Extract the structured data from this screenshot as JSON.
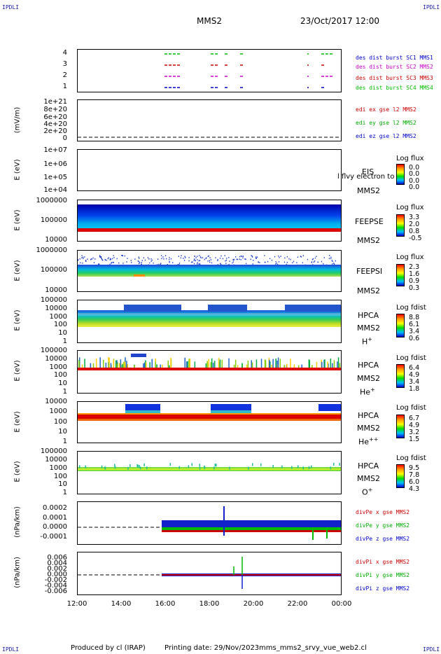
{
  "corners": {
    "tl": "IPDLI",
    "tr": "IPDLI",
    "bl": "IPDLI",
    "br": "IPDLI"
  },
  "header": {
    "spacecraft": "MMS2",
    "datetime": "23/Oct/2017 12:00"
  },
  "x_axis": {
    "ticks": [
      "12:00",
      "14:00",
      "16:00",
      "18:00",
      "20:00",
      "22:00",
      "00:00"
    ]
  },
  "colors": {
    "mms1": "#0000cc",
    "mms2": "#cc00cc",
    "mms3": "#cc0000",
    "mms4": "#00bb00",
    "red": "#cc0000",
    "green": "#00aa00",
    "blue": "#0000cc"
  },
  "panels": {
    "burst": {
      "ticks": [
        "4",
        "3",
        "2",
        "1"
      ],
      "legend": [
        "des dist burst SC1 MMS1",
        "des dist burst SC2 MMS2",
        "des dist burst SC3 MMS3",
        "des dist burst SC4 MMS4"
      ]
    },
    "edi": {
      "ylabel": "(mV/m)",
      "ticks": [
        "1e+21",
        "8e+20",
        "6e+20",
        "4e+20",
        "2e+20",
        "0"
      ],
      "legend": [
        "edi ex gse l2 MMS2",
        "edi ey gse l2 MMS2",
        "edi ez gse l2 MMS2"
      ]
    },
    "eis": {
      "ylabel": "E (eV)",
      "ticks": [
        "1e+07",
        "1e+06",
        "1e+05",
        "1e+04"
      ],
      "label1": "EIS",
      "label2": "MMS2",
      "overlay": "l flvy electron to",
      "cb_title": "Log flux",
      "cb_vals": [
        "0.0",
        "0.0",
        "0.0",
        "0.0"
      ]
    },
    "feepse": {
      "ylabel": "E (eV)",
      "ticks": [
        "1000000",
        "100000",
        "10000"
      ],
      "label1": "FEEPSE",
      "label2": "MMS2",
      "cb_title": "Log flux",
      "cb_vals": [
        "3.3",
        "2.0",
        "0.8",
        "-0.5"
      ]
    },
    "feepsi": {
      "ylabel": "E (eV)",
      "ticks": [
        "1000000",
        "100000",
        "10000"
      ],
      "label1": "FEEPSI",
      "label2": "MMS2",
      "cb_title": "Log flux",
      "cb_vals": [
        "2.3",
        "1.6",
        "0.9",
        "0.3"
      ]
    },
    "hpca_h": {
      "ylabel": "E (eV)",
      "ticks": [
        "100000",
        "10000",
        "1000",
        "100",
        "10",
        "1"
      ],
      "label1": "HPCA",
      "label2": "MMS2",
      "species": "H",
      "charge": "+",
      "cb_title": "Log fdist",
      "cb_vals": [
        "8.8",
        "6.1",
        "3.4",
        "0.6"
      ]
    },
    "hpca_he": {
      "ylabel": "E (eV)",
      "ticks": [
        "100000",
        "10000",
        "1000",
        "100",
        "10",
        "1"
      ],
      "label1": "HPCA",
      "label2": "MMS2",
      "species": "He",
      "charge": "+",
      "cb_title": "Log fdist",
      "cb_vals": [
        "6.4",
        "4.9",
        "3.4",
        "1.8"
      ]
    },
    "hpca_hepp": {
      "ylabel": "E (eV)",
      "ticks": [
        "10000",
        "1000",
        "100",
        "10",
        "1"
      ],
      "label1": "HPCA",
      "label2": "MMS2",
      "species": "He",
      "charge": "++",
      "cb_title": "Log fdist",
      "cb_vals": [
        "6.7",
        "4.9",
        "3.2",
        "1.5"
      ]
    },
    "hpca_o": {
      "ylabel": "E (eV)",
      "ticks": [
        "100000",
        "10000",
        "1000",
        "100",
        "10",
        "1"
      ],
      "label1": "HPCA",
      "label2": "MMS2",
      "species": "O",
      "charge": "+",
      "cb_title": "Log fdist",
      "cb_vals": [
        "9.5",
        "7.8",
        "6.0",
        "4.3"
      ]
    },
    "divpe": {
      "ylabel": "(nPa/km)",
      "ticks": [
        "0.0002",
        "0.0001",
        "0.0000",
        "-0.0001"
      ],
      "legend": [
        "divPe x gse MMS2",
        "divPe y gse MMS2",
        "divPe z gse MMS2"
      ]
    },
    "divpi": {
      "ylabel": "(nPa/km)",
      "ticks": [
        "0.006",
        "0.004",
        "0.002",
        "0.000",
        "-0.002",
        "-0.004",
        "-0.006"
      ],
      "legend": [
        "divPi x gse MMS2",
        "divPi y gse MMS2",
        "divPi z gse MMS2"
      ]
    }
  },
  "footer": {
    "produced": "Produced by cl (IRAP)",
    "printing": "Printing date: 29/Nov/2023",
    "file": "mms_mms2_srvy_vue_web2.cl"
  },
  "chart_data": {
    "type": "heatmap",
    "x": [
      "12:00",
      "14:00",
      "16:00",
      "18:00",
      "20:00",
      "22:00",
      "00:00"
    ],
    "title": "MMS2 23/Oct/2017 12:00"
  }
}
